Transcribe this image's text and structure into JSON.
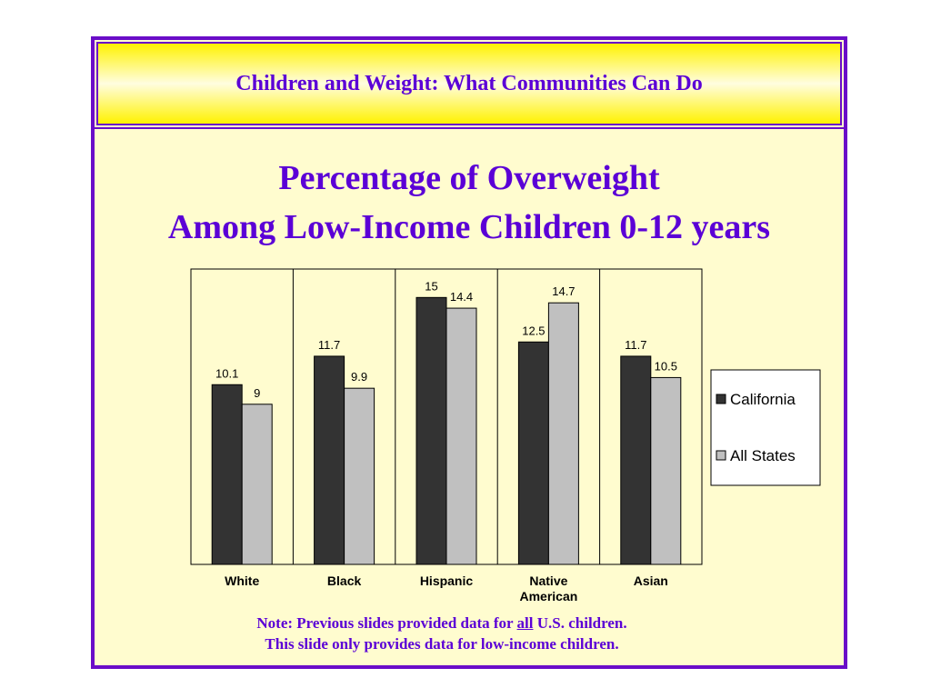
{
  "header": {
    "title": "Children and Weight: What Communities Can Do"
  },
  "chart_data": {
    "type": "bar",
    "title_lines": [
      "Percentage of Overweight",
      "Among Low-Income Children 0-12 years"
    ],
    "categories": [
      [
        "White"
      ],
      [
        "Black"
      ],
      [
        "Hispanic"
      ],
      [
        "Native",
        "American"
      ],
      [
        "Asian"
      ]
    ],
    "series": [
      {
        "name": "California",
        "color": "#333333",
        "values": [
          10.1,
          11.7,
          15,
          12.5,
          11.7
        ]
      },
      {
        "name": "All States",
        "color": "#c0c0c0",
        "values": [
          9,
          9.9,
          14.4,
          14.7,
          10.5
        ]
      }
    ],
    "ylim": [
      0,
      16.6
    ],
    "grid": "vertical category separators",
    "legend_position": "right"
  },
  "note": {
    "line1_before": "Note: Previous slides provided data for ",
    "line1_emphasis": "all",
    "line1_after": " U.S. children.",
    "line2": "This slide only provides data for low-income children."
  }
}
